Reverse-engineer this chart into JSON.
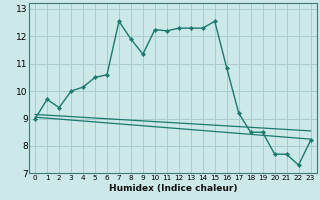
{
  "xlabel": "Humidex (Indice chaleur)",
  "background_color": "#cce8e8",
  "grid_color": "#aacccc",
  "line_color": "#1a7a6e",
  "xlim": [
    -0.5,
    23.5
  ],
  "ylim": [
    7,
    13.2
  ],
  "xticks": [
    0,
    1,
    2,
    3,
    4,
    5,
    6,
    7,
    8,
    9,
    10,
    11,
    12,
    13,
    14,
    15,
    16,
    17,
    18,
    19,
    20,
    21,
    22,
    23
  ],
  "yticks": [
    7,
    8,
    9,
    10,
    11,
    12,
    13
  ],
  "curve1_x": [
    0,
    1,
    2,
    3,
    4,
    5,
    6,
    7,
    8,
    9,
    10,
    11,
    12,
    13,
    14,
    15,
    16,
    17,
    18,
    19,
    20,
    21,
    22,
    23
  ],
  "curve1_y": [
    9.0,
    9.7,
    9.4,
    10.0,
    10.15,
    10.5,
    10.6,
    12.55,
    11.9,
    11.35,
    12.25,
    12.2,
    12.3,
    12.3,
    12.3,
    12.55,
    10.85,
    9.2,
    8.5,
    8.5,
    7.7,
    7.7,
    7.3,
    8.2
  ],
  "curve2_x": [
    0,
    23
  ],
  "curve2_y": [
    9.15,
    8.55
  ],
  "curve3_x": [
    0,
    23
  ],
  "curve3_y": [
    9.05,
    8.25
  ]
}
